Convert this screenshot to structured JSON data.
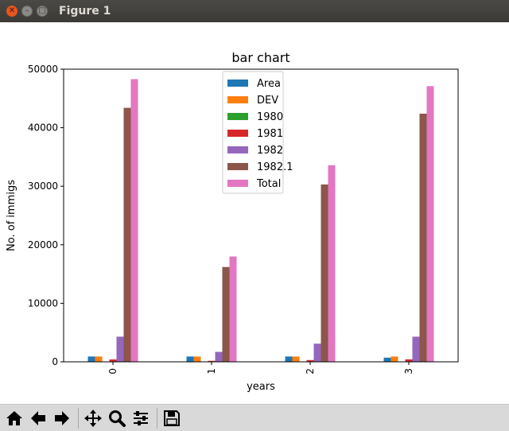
{
  "window": {
    "title": "Figure 1"
  },
  "colors": {
    "Area": "#1f77b4",
    "DEV": "#ff7f0e",
    "1980": "#2ca02c",
    "1981": "#d62728",
    "1982": "#9467bd",
    "1982.1": "#8c564b",
    "Total": "#e377c2"
  },
  "toolbar": [
    "home-icon",
    "back-icon",
    "forward-icon",
    "pan-icon",
    "zoom-icon",
    "configure-subplots-icon",
    "save-icon"
  ],
  "chart_data": {
    "type": "bar",
    "title": "bar chart",
    "xlabel": "years",
    "ylabel": "No. of immigs",
    "categories": [
      "0",
      "1",
      "2",
      "3"
    ],
    "ylim": [
      0,
      50000
    ],
    "yticks": [
      0,
      10000,
      20000,
      30000,
      40000,
      50000
    ],
    "legend_position": "top-center",
    "series": [
      {
        "name": "Area",
        "values": [
          909,
          909,
          909,
          709
        ]
      },
      {
        "name": "DEV",
        "values": [
          902,
          902,
          902,
          902
        ]
      },
      {
        "name": "1980",
        "values": [
          60,
          20,
          50,
          30
        ]
      },
      {
        "name": "1981",
        "values": [
          400,
          170,
          300,
          420
        ]
      },
      {
        "name": "1982",
        "values": [
          4300,
          1700,
          3100,
          4300
        ]
      },
      {
        "name": "1982.1",
        "values": [
          43400,
          16200,
          30300,
          42400
        ]
      },
      {
        "name": "Total",
        "values": [
          48300,
          18000,
          33600,
          47100
        ]
      }
    ]
  }
}
